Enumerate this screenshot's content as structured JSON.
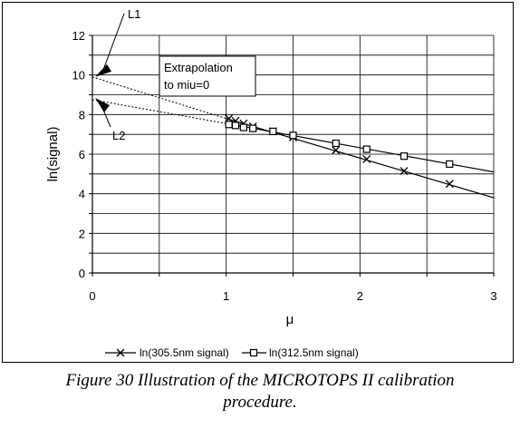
{
  "chart_data": {
    "type": "line",
    "xlabel": "μ",
    "ylabel": "ln(signal)",
    "xlim": [
      0,
      3
    ],
    "ylim": [
      0,
      12
    ],
    "x_ticks": [
      "0",
      "1",
      "2",
      "3"
    ],
    "y_ticks": [
      "0",
      "2",
      "4",
      "6",
      "8",
      "10",
      "12"
    ],
    "grid": true,
    "legend_position": "bottom",
    "series": [
      {
        "name": "ln(305.5nm signal)",
        "marker": "x",
        "points": [
          [
            1.02,
            7.8
          ],
          [
            1.07,
            7.68
          ],
          [
            1.13,
            7.55
          ],
          [
            1.2,
            7.4
          ],
          [
            1.35,
            7.15
          ],
          [
            1.5,
            6.85
          ],
          [
            1.82,
            6.2
          ],
          [
            2.05,
            5.75
          ],
          [
            2.33,
            5.15
          ],
          [
            2.67,
            4.5
          ]
        ],
        "fit_line": [
          [
            1.0,
            7.8
          ],
          [
            3.0,
            3.8
          ]
        ],
        "extrapolation": [
          [
            0.0,
            9.9
          ],
          [
            1.0,
            7.8
          ]
        ]
      },
      {
        "name": "ln(312.5nm signal)",
        "marker": "square",
        "points": [
          [
            1.02,
            7.5
          ],
          [
            1.07,
            7.45
          ],
          [
            1.13,
            7.35
          ],
          [
            1.2,
            7.3
          ],
          [
            1.35,
            7.15
          ],
          [
            1.5,
            6.95
          ],
          [
            1.82,
            6.55
          ],
          [
            2.05,
            6.25
          ],
          [
            2.33,
            5.9
          ],
          [
            2.67,
            5.5
          ]
        ],
        "fit_line": [
          [
            1.0,
            7.55
          ],
          [
            3.0,
            5.1
          ]
        ],
        "extrapolation": [
          [
            0.0,
            8.75
          ],
          [
            1.0,
            7.55
          ]
        ]
      }
    ],
    "annotations": [
      {
        "text": "L1",
        "x": 0.0,
        "y": 9.9
      },
      {
        "text": "L2",
        "x": 0.0,
        "y": 8.75
      }
    ],
    "annotation_box": [
      "Extrapolation",
      "to miu=0"
    ]
  },
  "caption_lines": [
    "Figure 30 Illustration of the MICROTOPS II calibration",
    "procedure."
  ]
}
